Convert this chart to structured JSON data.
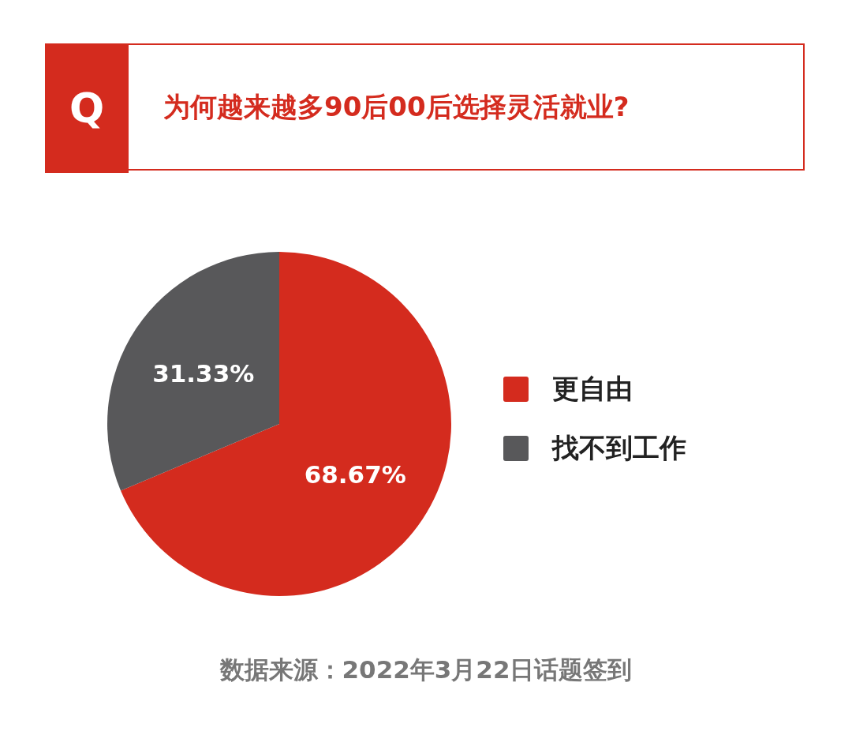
{
  "chart_data": {
    "type": "pie",
    "title": "为何越来越多90后00后选择灵活就业?",
    "categories": [
      "更自由",
      "找不到工作"
    ],
    "values": [
      68.67,
      31.33
    ],
    "value_labels": [
      "68.67%",
      "31.33%"
    ],
    "colors": [
      "#d42b1e",
      "#58585a"
    ],
    "legend": "right",
    "annotations": [
      "Q",
      "数据来源：2022年3月22日话题签到"
    ]
  }
}
